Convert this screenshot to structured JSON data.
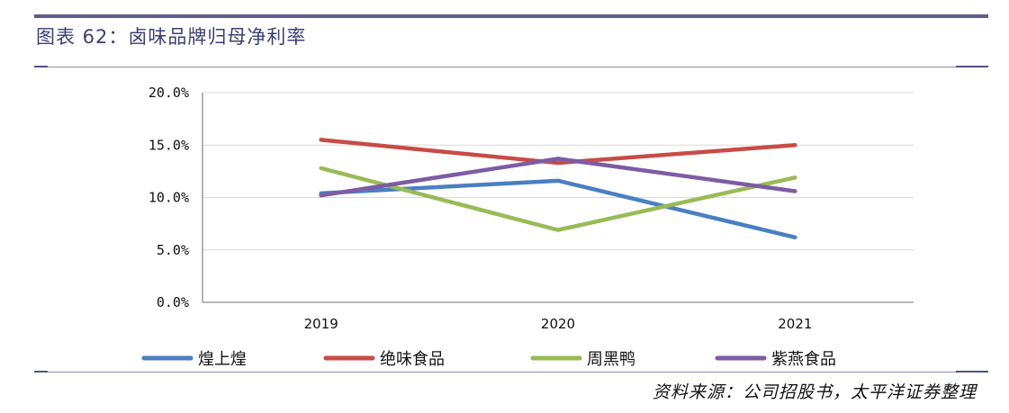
{
  "figure": {
    "title": "图表 62：卤味品牌归母净利率",
    "source": "资料来源：公司招股书，太平洋证券整理"
  },
  "chart_data": {
    "type": "line",
    "categories": [
      "2019",
      "2020",
      "2021"
    ],
    "y_ticks": [
      "0.0%",
      "5.0%",
      "10.0%",
      "15.0%",
      "20.0%"
    ],
    "ylim": [
      0,
      20
    ],
    "grid": true,
    "legend_position": "bottom",
    "series": [
      {
        "name": "煌上煌",
        "color": "#4a7fc1",
        "values": [
          10.4,
          11.6,
          6.2
        ]
      },
      {
        "name": "绝味食品",
        "color": "#c84b47",
        "values": [
          15.5,
          13.3,
          15.0
        ]
      },
      {
        "name": "周黑鸭",
        "color": "#98bb55",
        "values": [
          12.8,
          6.9,
          11.9
        ]
      },
      {
        "name": "紫燕食品",
        "color": "#7d5ca4",
        "values": [
          10.2,
          13.7,
          10.6
        ]
      }
    ]
  }
}
